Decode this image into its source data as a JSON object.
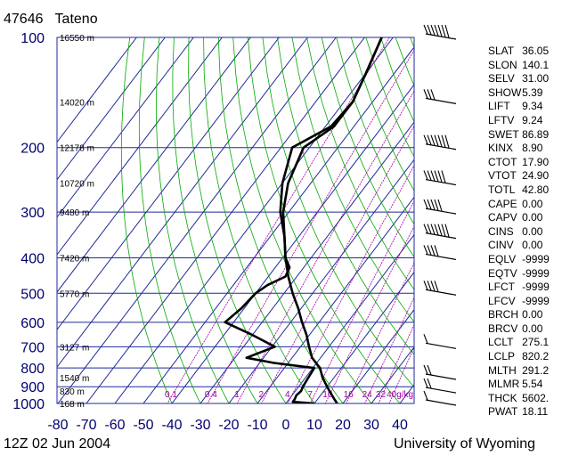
{
  "header": {
    "station_id": "47646",
    "station_name": "Tateno"
  },
  "footer": {
    "time": "12Z 02 Jun 2004",
    "source": "University of Wyoming"
  },
  "indices": [
    {
      "name": "SLAT",
      "value": "36.05"
    },
    {
      "name": "SLON",
      "value": "140.1"
    },
    {
      "name": "SELV",
      "value": "31.00"
    },
    {
      "name": "SHOW",
      "value": "5.39"
    },
    {
      "name": "LIFT",
      "value": "9.34"
    },
    {
      "name": "LFTV",
      "value": "9.24"
    },
    {
      "name": "SWET",
      "value": "86.89"
    },
    {
      "name": "KINX",
      "value": "8.90"
    },
    {
      "name": "CTOT",
      "value": "17.90"
    },
    {
      "name": "VTOT",
      "value": "24.90"
    },
    {
      "name": "TOTL",
      "value": "42.80"
    },
    {
      "name": "CAPE",
      "value": "0.00"
    },
    {
      "name": "CAPV",
      "value": "0.00"
    },
    {
      "name": "CINS",
      "value": "0.00"
    },
    {
      "name": "CINV",
      "value": "0.00"
    },
    {
      "name": "EQLV",
      "value": "-9999"
    },
    {
      "name": "EQTV",
      "value": "-9999"
    },
    {
      "name": "LFCT",
      "value": "-9999"
    },
    {
      "name": "LFCV",
      "value": "-9999"
    },
    {
      "name": "BRCH",
      "value": "0.00"
    },
    {
      "name": "BRCV",
      "value": "0.00"
    },
    {
      "name": "LCLT",
      "value": "275.1"
    },
    {
      "name": "LCLP",
      "value": "820.2"
    },
    {
      "name": "MLTH",
      "value": "291.2"
    },
    {
      "name": "MLMR",
      "value": "5.54"
    },
    {
      "name": "THCK",
      "value": "5602."
    },
    {
      "name": "PWAT",
      "value": "18.11"
    }
  ],
  "colors": {
    "grid": "#1f2a99",
    "dry_adiabat": "#00aa00",
    "mixing_ratio": "#a000a0",
    "profile": "#000000",
    "axis_label": "#00006e"
  },
  "chart_data": {
    "type": "skew-t",
    "xlabel": "",
    "ylabel": "",
    "pressure_ticks": [
      100,
      200,
      300,
      400,
      500,
      600,
      700,
      800,
      900,
      1000
    ],
    "temperature_ticks": [
      -80,
      -70,
      -60,
      -50,
      -40,
      -30,
      -20,
      -10,
      0,
      10,
      20,
      30,
      40
    ],
    "xlim": [
      -80,
      40
    ],
    "ylim_hpa": [
      1000,
      100
    ],
    "height_labels": [
      {
        "p": 100,
        "text": "16550 m"
      },
      {
        "p": 150,
        "text": "14020 m"
      },
      {
        "p": 200,
        "text": "12178 m"
      },
      {
        "p": 250,
        "text": "10720 m"
      },
      {
        "p": 300,
        "text": "9480 m"
      },
      {
        "p": 400,
        "text": "7420 m"
      },
      {
        "p": 500,
        "text": "5770 m"
      },
      {
        "p": 700,
        "text": "3127 m"
      },
      {
        "p": 850,
        "text": "1540 m"
      },
      {
        "p": 925,
        "text": "830 m"
      },
      {
        "p": 1000,
        "text": "168 m"
      }
    ],
    "mixing_ratio_labels": [
      "0.1",
      "0.4",
      "1",
      "2",
      "4",
      "7",
      "10",
      "16",
      "24",
      "32",
      "40g/kg"
    ],
    "grid": true,
    "series": [
      {
        "kind": "temperature",
        "points": [
          [
            1000,
            18
          ],
          [
            975,
            16
          ],
          [
            950,
            14
          ],
          [
            925,
            12
          ],
          [
            900,
            10
          ],
          [
            850,
            6
          ],
          [
            800,
            2.5
          ],
          [
            750,
            -3
          ],
          [
            700,
            -7
          ],
          [
            650,
            -11
          ],
          [
            600,
            -16
          ],
          [
            550,
            -21
          ],
          [
            500,
            -27
          ],
          [
            450,
            -33
          ],
          [
            400,
            -39
          ],
          [
            350,
            -45
          ],
          [
            300,
            -52
          ],
          [
            250,
            -58
          ],
          [
            200,
            -62
          ],
          [
            175,
            -57
          ],
          [
            150,
            -57
          ],
          [
            125,
            -60
          ],
          [
            100,
            -64
          ]
        ]
      },
      {
        "kind": "dewpoint",
        "points": [
          [
            1000,
            10
          ],
          [
            990,
            2
          ],
          [
            975,
            2
          ],
          [
            950,
            1.5
          ],
          [
            925,
            2
          ],
          [
            900,
            1.5
          ],
          [
            850,
            1
          ],
          [
            800,
            0.5
          ],
          [
            775,
            -15
          ],
          [
            750,
            -26
          ],
          [
            700,
            -19
          ],
          [
            650,
            -30
          ],
          [
            600,
            -43
          ],
          [
            550,
            -41
          ],
          [
            500,
            -40
          ],
          [
            475,
            -38
          ],
          [
            450,
            -34
          ],
          [
            425,
            -35
          ],
          [
            400,
            -39
          ],
          [
            350,
            -45
          ],
          [
            300,
            -53
          ],
          [
            250,
            -60
          ],
          [
            200,
            -66
          ],
          [
            175,
            -58
          ],
          [
            150,
            -57
          ],
          [
            125,
            -60
          ],
          [
            100,
            -64
          ]
        ]
      }
    ],
    "wind_barbs": [
      {
        "p": 100,
        "kt": 70
      },
      {
        "p": 150,
        "kt": 25
      },
      {
        "p": 200,
        "kt": 65
      },
      {
        "p": 250,
        "kt": 55
      },
      {
        "p": 300,
        "kt": 50
      },
      {
        "p": 350,
        "kt": 65
      },
      {
        "p": 400,
        "kt": 40
      },
      {
        "p": 500,
        "kt": 35
      },
      {
        "p": 700,
        "kt": 10
      },
      {
        "p": 850,
        "kt": 20
      },
      {
        "p": 925,
        "kt": 20
      },
      {
        "p": 1000,
        "kt": 10
      }
    ]
  }
}
